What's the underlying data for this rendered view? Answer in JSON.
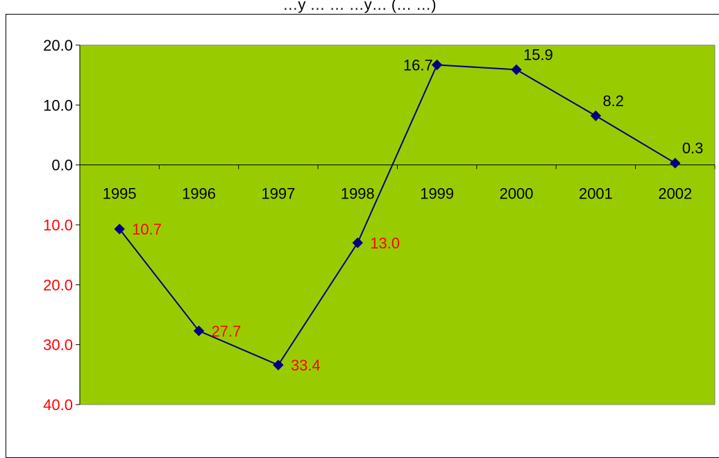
{
  "chart_data": {
    "type": "line",
    "title": "…y … … …y… (… …)",
    "categories": [
      "1995",
      "1996",
      "1997",
      "1998",
      "1999",
      "2000",
      "2001",
      "2002"
    ],
    "series": [
      {
        "values": [
          -10.7,
          -27.7,
          -33.4,
          -13.0,
          16.7,
          15.9,
          8.2,
          0.3
        ]
      }
    ],
    "data_labels": [
      "10.7",
      "27.7",
      "33.4",
      "13.0",
      "16.7",
      "15.9",
      "8.2",
      "0.3"
    ],
    "y_tick_labels": [
      "20.0",
      "10.0",
      "0.0",
      "10.0",
      "20.0",
      "30.0",
      "40.0"
    ],
    "y_tick_values": [
      20,
      10,
      0,
      -10,
      -20,
      -30,
      -40
    ],
    "ylim": [
      -40,
      20
    ],
    "grid": false,
    "colors": {
      "plot_background": "#99cc00",
      "line": "#000080",
      "marker": "#000080",
      "positive_label": "#000000",
      "negative_label": "#ff0000"
    }
  }
}
